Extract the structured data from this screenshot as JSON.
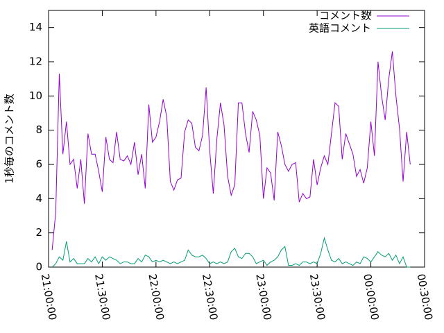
{
  "chart_data": {
    "type": "line",
    "ylabel": "1秒毎のコメント数",
    "x": [
      "21:02:00",
      "21:04:00",
      "21:06:00",
      "21:08:00",
      "21:10:00",
      "21:12:00",
      "21:14:00",
      "21:16:00",
      "21:18:00",
      "21:20:00",
      "21:22:00",
      "21:24:00",
      "21:26:00",
      "21:28:00",
      "21:30:00",
      "21:32:00",
      "21:34:00",
      "21:36:00",
      "21:38:00",
      "21:40:00",
      "21:42:00",
      "21:44:00",
      "21:46:00",
      "21:48:00",
      "21:50:00",
      "21:52:00",
      "21:54:00",
      "21:56:00",
      "21:58:00",
      "22:00:00",
      "22:02:00",
      "22:04:00",
      "22:06:00",
      "22:08:00",
      "22:10:00",
      "22:12:00",
      "22:14:00",
      "22:16:00",
      "22:18:00",
      "22:20:00",
      "22:22:00",
      "22:24:00",
      "22:26:00",
      "22:28:00",
      "22:30:00",
      "22:32:00",
      "22:34:00",
      "22:36:00",
      "22:38:00",
      "22:40:00",
      "22:42:00",
      "22:44:00",
      "22:46:00",
      "22:48:00",
      "22:50:00",
      "22:52:00",
      "22:54:00",
      "22:56:00",
      "22:58:00",
      "23:00:00",
      "23:02:00",
      "23:04:00",
      "23:06:00",
      "23:08:00",
      "23:10:00",
      "23:12:00",
      "23:14:00",
      "23:16:00",
      "23:18:00",
      "23:20:00",
      "23:22:00",
      "23:24:00",
      "23:26:00",
      "23:28:00",
      "23:30:00",
      "23:32:00",
      "23:34:00",
      "23:36:00",
      "23:38:00",
      "23:40:00",
      "23:42:00",
      "23:44:00",
      "23:46:00",
      "23:48:00",
      "23:50:00",
      "23:52:00",
      "23:54:00",
      "23:56:00",
      "23:58:00",
      "00:00:00",
      "00:02:00",
      "00:04:00",
      "00:06:00",
      "00:08:00",
      "00:10:00",
      "00:12:00",
      "00:14:00",
      "00:16:00",
      "00:18:00",
      "00:20:00",
      "00:22:00"
    ],
    "series": [
      {
        "name": "コメント数",
        "color": "#9400d3",
        "values": [
          1.0,
          3.2,
          11.3,
          6.6,
          8.5,
          6.0,
          6.3,
          4.6,
          6.3,
          3.7,
          7.8,
          6.6,
          6.6,
          5.6,
          4.4,
          7.6,
          6.3,
          6.1,
          7.9,
          6.3,
          6.2,
          6.5,
          6.0,
          7.3,
          5.4,
          6.6,
          4.6,
          9.5,
          7.3,
          7.6,
          8.5,
          9.8,
          8.8,
          5.0,
          4.5,
          5.1,
          5.2,
          7.9,
          8.6,
          8.4,
          7.0,
          6.8,
          7.7,
          10.5,
          6.8,
          4.3,
          7.5,
          9.6,
          8.3,
          5.3,
          4.2,
          4.8,
          9.6,
          9.6,
          7.8,
          6.7,
          9.1,
          8.6,
          7.7,
          4.0,
          5.8,
          5.5,
          3.9,
          7.9,
          7.1,
          6.0,
          5.6,
          6.0,
          6.1,
          3.8,
          4.3,
          4.0,
          4.1,
          6.3,
          4.8,
          5.8,
          6.5,
          6.0,
          7.8,
          9.6,
          9.4,
          6.3,
          7.8,
          7.2,
          6.6,
          5.3,
          5.7,
          4.9,
          5.8,
          8.5,
          6.5,
          12.0,
          10.0,
          8.6,
          11.0,
          12.6,
          10.0,
          8.1,
          5.0,
          7.9,
          6.0
        ]
      },
      {
        "name": "英語コメント",
        "color": "#009e73",
        "values": [
          0.0,
          0.2,
          0.6,
          0.4,
          1.5,
          0.3,
          0.5,
          0.2,
          0.2,
          0.2,
          0.5,
          0.3,
          0.6,
          0.2,
          0.6,
          0.4,
          0.6,
          0.5,
          0.4,
          0.2,
          0.3,
          0.3,
          0.2,
          0.2,
          0.5,
          0.3,
          0.7,
          0.6,
          0.3,
          0.4,
          0.3,
          0.4,
          0.3,
          0.2,
          0.3,
          0.2,
          0.3,
          0.4,
          1.0,
          0.7,
          0.6,
          0.6,
          0.7,
          0.5,
          0.2,
          0.3,
          0.2,
          0.3,
          0.2,
          0.3,
          0.9,
          1.1,
          0.6,
          0.5,
          0.8,
          0.8,
          0.6,
          0.2,
          0.3,
          0.4,
          0.1,
          0.3,
          0.4,
          0.6,
          1.0,
          1.2,
          0.1,
          0.1,
          0.2,
          0.1,
          0.3,
          0.3,
          0.2,
          0.3,
          0.2,
          0.8,
          1.7,
          1.0,
          0.4,
          0.3,
          0.5,
          0.2,
          0.3,
          0.2,
          0.1,
          0.3,
          0.2,
          0.6,
          0.5,
          0.3,
          0.6,
          0.9,
          0.7,
          0.6,
          0.8,
          0.4,
          0.7,
          0.2,
          0.6,
          0.0,
          0.0
        ]
      }
    ],
    "xlim": [
      "21:00:00",
      "00:30:00"
    ],
    "xticks": [
      "21:00:00",
      "21:30:00",
      "22:00:00",
      "22:30:00",
      "23:00:00",
      "23:30:00",
      "00:00:00",
      "00:30:00"
    ],
    "ylim": [
      0,
      15
    ],
    "yticks": [
      0,
      2,
      4,
      6,
      8,
      10,
      12,
      14
    ],
    "legend": "top-right"
  }
}
